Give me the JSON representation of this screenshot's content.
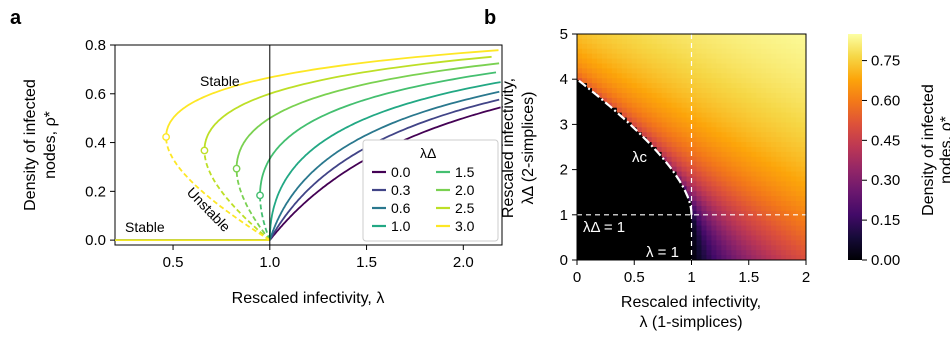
{
  "chart_data": [
    {
      "panel": "a",
      "type": "line",
      "xlabel": "Rescaled infectivity, λ",
      "ylabel_line1": "Density of infected",
      "ylabel_line2": "nodes, ρ*",
      "xlim": [
        0.2,
        2.2
      ],
      "ylim": [
        -0.02,
        0.8
      ],
      "xticks": [
        "0.5",
        "1.0",
        "1.5",
        "2.0"
      ],
      "yticks": [
        "0.0",
        "0.2",
        "0.4",
        "0.6",
        "0.8"
      ],
      "legend_title": "λΔ",
      "legend_placement": "lower-right",
      "annotations": [
        "Stable",
        "Unstable",
        "Stable"
      ],
      "series": [
        {
          "name": "0.0",
          "lambda_delta": 0.0,
          "color": "#440154"
        },
        {
          "name": "0.3",
          "lambda_delta": 0.3,
          "color": "#414487"
        },
        {
          "name": "0.6",
          "lambda_delta": 0.6,
          "color": "#2a788e"
        },
        {
          "name": "1.0",
          "lambda_delta": 1.0,
          "color": "#22a884"
        },
        {
          "name": "1.5",
          "lambda_delta": 1.5,
          "color": "#44bf70"
        },
        {
          "name": "2.0",
          "lambda_delta": 2.0,
          "color": "#7ad151"
        },
        {
          "name": "2.5",
          "lambda_delta": 2.5,
          "color": "#bddf26"
        },
        {
          "name": "3.0",
          "lambda_delta": 3.0,
          "color": "#fde725"
        }
      ]
    },
    {
      "panel": "b",
      "type": "heatmap",
      "xlabel_line1": "Rescaled infectivity,",
      "xlabel_line2": "λ (1-simplices)",
      "ylabel_line1": "Rescaled infectivity,",
      "ylabel_line2": "λΔ (2-simplices)",
      "xlim": [
        0,
        2
      ],
      "ylim": [
        0,
        5
      ],
      "xticks": [
        "0",
        "0.5",
        "1",
        "1.5",
        "2"
      ],
      "yticks": [
        "0",
        "1",
        "2",
        "3",
        "4",
        "5"
      ],
      "colormap": "inferno",
      "colorbar_label_line1": "Density of infected",
      "colorbar_label_line2": "nodes, ρ*",
      "colorbar_range": [
        0,
        0.85
      ],
      "colorbar_ticks": [
        "0.00",
        "0.15",
        "0.30",
        "0.45",
        "0.60",
        "0.75"
      ],
      "annotations": [
        "λc",
        "λΔ = 1",
        "λ = 1"
      ]
    }
  ]
}
